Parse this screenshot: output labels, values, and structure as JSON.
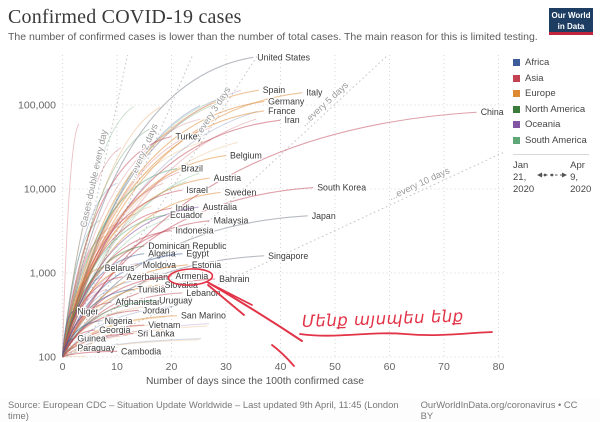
{
  "header": {
    "title": "Confirmed COVID-19 cases",
    "subtitle": "The number of confirmed cases is lower than the number of total cases. The main reason for this is limited testing.",
    "logo": {
      "line1": "Our World",
      "line2": "in Data"
    }
  },
  "colors": {
    "Africa": "#3e5c99",
    "Asia": "#c24251",
    "Europe": "#dd8a33",
    "North America": "#3b7c3b",
    "Oceania": "#8455a2",
    "South America": "#5fa777",
    "muted_line": "#9aa0a8",
    "annotation_red": "#e23347",
    "grid": "#d4d4d4",
    "guide": "#c4c4c4"
  },
  "chart_data": {
    "type": "line",
    "y_log": true,
    "xlabel": "Number of days since the 100th confirmed case",
    "x_ticks": [
      0,
      10,
      20,
      30,
      40,
      50,
      60,
      70,
      80
    ],
    "y_ticks": [
      {
        "label": "100",
        "value": 100
      },
      {
        "label": "1,000",
        "value": 1000
      },
      {
        "label": "10,000",
        "value": 10000
      },
      {
        "label": "100,000",
        "value": 100000
      }
    ],
    "xlim": [
      0,
      81
    ],
    "ylim": [
      100,
      370000
    ],
    "guides": [
      {
        "label": "Cases double every day",
        "days_per_doubling": 1,
        "label_day": 7
      },
      {
        "label": "...every 2 days",
        "days_per_doubling": 2,
        "label_day": 16
      },
      {
        "label": "...every 3 days",
        "days_per_doubling": 3,
        "label_day": 28.5
      },
      {
        "label": "...every 5 days",
        "days_per_doubling": 5,
        "label_day": 49
      },
      {
        "label": "...every 10 days",
        "days_per_doubling": 10,
        "label_day": 66
      }
    ],
    "series": [
      {
        "name": "United States",
        "continent": "North America",
        "day": 35,
        "cases": 370000,
        "gray": true
      },
      {
        "name": "Spain",
        "continent": "Europe",
        "day": 36,
        "cases": 150000
      },
      {
        "name": "Italy",
        "continent": "Europe",
        "day": 44,
        "cases": 140000
      },
      {
        "name": "Germany",
        "continent": "Europe",
        "day": 37,
        "cases": 110000
      },
      {
        "name": "France",
        "continent": "Europe",
        "day": 37,
        "cases": 85000
      },
      {
        "name": "Iran",
        "continent": "Asia",
        "day": 40,
        "cases": 66000
      },
      {
        "name": "China",
        "continent": "Asia",
        "day": 76,
        "cases": 82000
      },
      {
        "name": "Turkey",
        "continent": "Asia",
        "day": 20,
        "cases": 42000
      },
      {
        "name": "Belgium",
        "continent": "Europe",
        "day": 30,
        "cases": 25000
      },
      {
        "name": "Brazil",
        "continent": "South America",
        "day": 21,
        "cases": 17500
      },
      {
        "name": "Austria",
        "continent": "Europe",
        "day": 27,
        "cases": 13500
      },
      {
        "name": "Israel",
        "continent": "Asia",
        "day": 22,
        "cases": 9700
      },
      {
        "name": "Sweden",
        "continent": "Europe",
        "day": 29,
        "cases": 9100
      },
      {
        "name": "South Korea",
        "continent": "Asia",
        "day": 46,
        "cases": 10400
      },
      {
        "name": "India",
        "continent": "Asia",
        "day": 20,
        "cases": 5900
      },
      {
        "name": "Australia",
        "continent": "Oceania",
        "day": 25,
        "cases": 6100
      },
      {
        "name": "Ecuador",
        "continent": "South America",
        "day": 19,
        "cases": 4900
      },
      {
        "name": "Malaysia",
        "continent": "Asia",
        "day": 27,
        "cases": 4200
      },
      {
        "name": "Japan",
        "continent": "Asia",
        "day": 45,
        "cases": 4800,
        "gray": true
      },
      {
        "name": "Indonesia",
        "continent": "Asia",
        "day": 20,
        "cases": 3200
      },
      {
        "name": "Dominican Republic",
        "continent": "North America",
        "day": 15,
        "cases": 2100
      },
      {
        "name": "Algeria",
        "continent": "Africa",
        "day": 15,
        "cases": 1700
      },
      {
        "name": "Egypt",
        "continent": "Africa",
        "day": 22,
        "cases": 1700
      },
      {
        "name": "Singapore",
        "continent": "Asia",
        "day": 37,
        "cases": 1600,
        "gray": true
      },
      {
        "name": "Moldova",
        "continent": "Europe",
        "day": 14,
        "cases": 1250
      },
      {
        "name": "Estonia",
        "continent": "Europe",
        "day": 23,
        "cases": 1250
      },
      {
        "name": "Belarus",
        "continent": "Europe",
        "day": 7,
        "cases": 1150
      },
      {
        "name": "Azerbaijan",
        "continent": "Asia",
        "day": 11,
        "cases": 900
      },
      {
        "name": "Armenia",
        "continent": "Asia",
        "day": 20,
        "cases": 920
      },
      {
        "name": "Bahrain",
        "continent": "Asia",
        "day": 28,
        "cases": 850
      },
      {
        "name": "Slovakia",
        "continent": "Europe",
        "day": 18,
        "cases": 720
      },
      {
        "name": "Tunisia",
        "continent": "Africa",
        "day": 13,
        "cases": 640
      },
      {
        "name": "Lebanon",
        "continent": "Asia",
        "day": 22,
        "cases": 580
      },
      {
        "name": "Afghanistan",
        "continent": "Asia",
        "day": 9,
        "cases": 450
      },
      {
        "name": "Uruguay",
        "continent": "South America",
        "day": 17,
        "cases": 470
      },
      {
        "name": "Jordan",
        "continent": "Asia",
        "day": 14,
        "cases": 360
      },
      {
        "name": "San Marino",
        "continent": "Europe",
        "day": 21,
        "cases": 310
      },
      {
        "name": "Niger",
        "continent": "Africa",
        "day": 2,
        "cases": 350
      },
      {
        "name": "Nigeria",
        "continent": "Africa",
        "day": 7,
        "cases": 270
      },
      {
        "name": "Vietnam",
        "continent": "Asia",
        "day": 15,
        "cases": 240
      },
      {
        "name": "Georgia",
        "continent": "Asia",
        "day": 6,
        "cases": 210
      },
      {
        "name": "Sri Lanka",
        "continent": "Asia",
        "day": 13,
        "cases": 190
      },
      {
        "name": "Guinea",
        "continent": "Africa",
        "day": 2,
        "cases": 165
      },
      {
        "name": "Paraguay",
        "continent": "South America",
        "day": 2,
        "cases": 128
      },
      {
        "name": "Cambodia",
        "continent": "Asia",
        "day": 10,
        "cases": 117
      }
    ]
  },
  "legend": {
    "items": [
      {
        "label": "Africa"
      },
      {
        "label": "Asia"
      },
      {
        "label": "Europe"
      },
      {
        "label": "North America"
      },
      {
        "label": "Oceania"
      },
      {
        "label": "South America"
      }
    ],
    "date_start": "Jan\n21,\n2020",
    "date_end": "Apr\n9,\n2020"
  },
  "annotation": {
    "text": "Մենք այսպես ենք",
    "circled_country": "Armenia"
  },
  "footer": {
    "source": "Source: European CDC – Situation Update Worldwide – Last updated 9th April, 11:45 (London time)",
    "credit": "OurWorldInData.org/coronavirus • CC BY"
  }
}
